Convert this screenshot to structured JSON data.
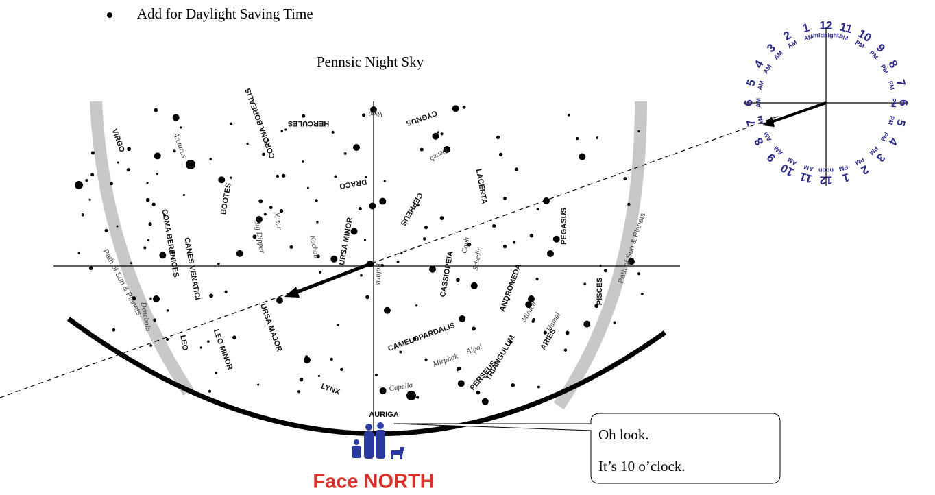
{
  "bullet": "Add for Daylight Saving Time",
  "title": "Pennsic Night Sky",
  "constellations": [
    "VIRGO",
    "BOOTES",
    "CORONA BOREALIS",
    "HERCULES",
    "DRACO",
    "CYGNUS",
    "LACERTA",
    "CEPHEUS",
    "URSA MINOR",
    "CASSIOPEIA",
    "PEGASUS",
    "PISCES",
    "ANDROMEDA",
    "TRIANGULUM",
    "ARIES",
    "PERSEUS",
    "CAMELOPARDALIS",
    "AURIGA",
    "LYNX",
    "URSA MAJOR",
    "LEO MINOR",
    "LEO",
    "CANES VENATICI",
    "COMA BERENICES"
  ],
  "stars": [
    "Arcturus",
    "Vega",
    "Deneb",
    "Polaris",
    "Capella",
    "Mirphak",
    "Algol",
    "Mirach",
    "Hamal",
    "Denebola",
    "Kochab",
    "Mizar",
    "Caph",
    "Schedir",
    "Big Dipper"
  ],
  "ecliptic": [
    "Path of Sun & Planets",
    "Path of Sun & Planets"
  ],
  "clock": {
    "hours": [
      {
        "number": "12",
        "period": "midnight"
      },
      {
        "number": "11",
        "period": "PM"
      },
      {
        "number": "10",
        "period": "PM"
      },
      {
        "number": "9",
        "period": "PM"
      },
      {
        "number": "8",
        "period": "PM"
      },
      {
        "number": "7",
        "period": "PM"
      },
      {
        "number": "6",
        "period": "PM"
      },
      {
        "number": "5",
        "period": "PM"
      },
      {
        "number": "4",
        "period": "PM"
      },
      {
        "number": "3",
        "period": "PM"
      },
      {
        "number": "2",
        "period": "PM"
      },
      {
        "number": "1",
        "period": "PM"
      },
      {
        "number": "12",
        "period": "noon"
      },
      {
        "number": "11",
        "period": "AM"
      },
      {
        "number": "10",
        "period": "AM"
      },
      {
        "number": "9",
        "period": "AM"
      },
      {
        "number": "8",
        "period": "AM"
      },
      {
        "number": "7",
        "period": "AM"
      },
      {
        "number": "6",
        "period": "AM"
      },
      {
        "number": "5",
        "period": "AM"
      },
      {
        "number": "4",
        "period": "AM"
      },
      {
        "number": "3",
        "period": "AM"
      },
      {
        "number": "2",
        "period": "AM"
      },
      {
        "number": "1",
        "period": "AM"
      }
    ]
  },
  "callout": [
    "Oh look.",
    "It’s 10 o’clock."
  ],
  "footer": "Face NORTH"
}
